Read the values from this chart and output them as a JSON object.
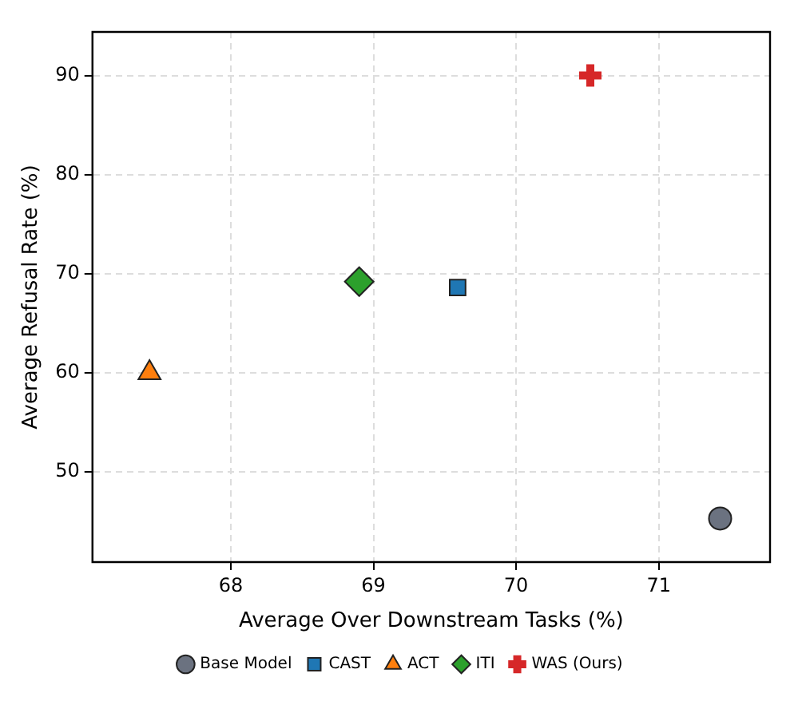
{
  "chart_data": {
    "type": "scatter",
    "xlabel": "Average Over Downstream Tasks (%)",
    "ylabel": "Average Refusal Rate (%)",
    "xlim": [
      67.03,
      71.78
    ],
    "xticks": [
      68,
      69,
      70,
      71
    ],
    "ylim": [
      40.9,
      94.4
    ],
    "yticks": [
      50,
      60,
      70,
      80,
      90
    ],
    "grid": true,
    "legend": "bottom",
    "series": [
      {
        "name": "Base Model",
        "color": "#6b7280",
        "marker": "circle",
        "x": [
          71.43
        ],
        "values": [
          45.3
        ]
      },
      {
        "name": "CAST",
        "color": "#1f77b4",
        "marker": "square",
        "x": [
          69.59
        ],
        "values": [
          68.6
        ]
      },
      {
        "name": "ACT",
        "color": "#ff7f0e",
        "marker": "triangle",
        "x": [
          67.43
        ],
        "values": [
          60
        ]
      },
      {
        "name": "ITI",
        "color": "#2ca02c",
        "marker": "diamond",
        "x": [
          68.9
        ],
        "values": [
          69.2
        ]
      },
      {
        "name": "WAS (Ours)",
        "color": "#d62728",
        "marker": "cross",
        "x": [
          70.52
        ],
        "values": [
          90
        ]
      }
    ]
  }
}
